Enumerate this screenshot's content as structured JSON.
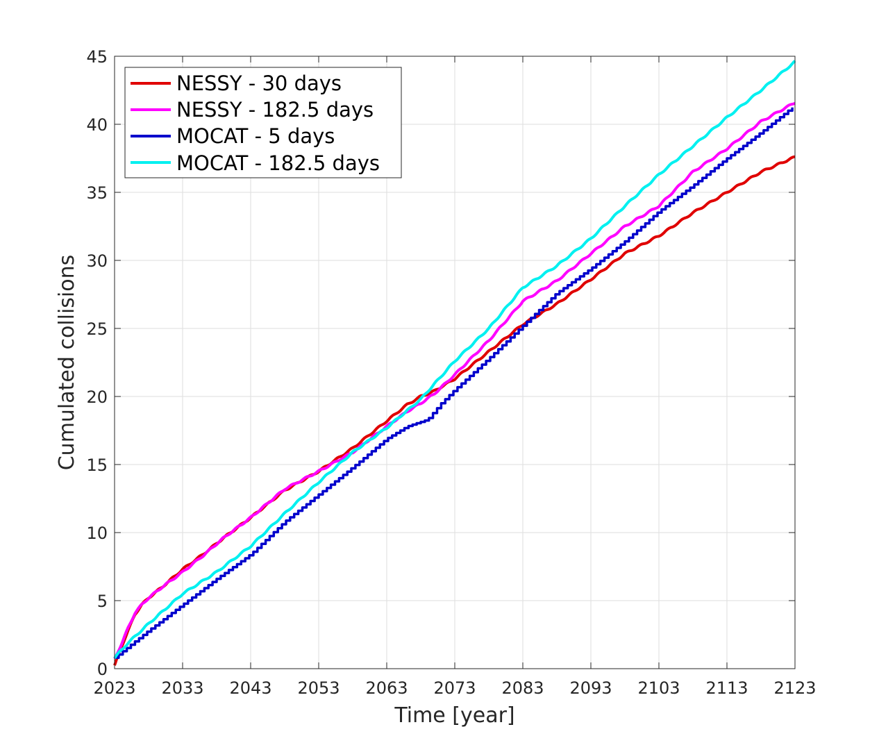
{
  "chart_data": {
    "type": "line",
    "title": "",
    "xlabel": "Time [year]",
    "ylabel": "Cumulated collisions",
    "xlim": [
      2023,
      2123
    ],
    "ylim": [
      0,
      45
    ],
    "xticks": [
      2023,
      2033,
      2043,
      2053,
      2063,
      2073,
      2083,
      2093,
      2103,
      2113,
      2123
    ],
    "yticks": [
      0,
      5,
      10,
      15,
      20,
      25,
      30,
      35,
      40,
      45
    ],
    "grid": true,
    "legend_position": "top-left",
    "series": [
      {
        "name": "NESSY - 30 days",
        "color": "#e00000",
        "style": "smooth",
        "x": [
          2023,
          2024,
          2025,
          2026,
          2027,
          2028,
          2030,
          2033,
          2036,
          2039,
          2043,
          2048,
          2053,
          2058,
          2063,
          2066,
          2068,
          2070,
          2073,
          2078,
          2083,
          2088,
          2093,
          2098,
          2103,
          2108,
          2113,
          2118,
          2123
        ],
        "y": [
          0.2,
          1.6,
          2.8,
          4.0,
          4.7,
          5.2,
          6.0,
          7.3,
          8.4,
          9.6,
          11.1,
          13.1,
          14.5,
          16.2,
          18.2,
          19.4,
          20.0,
          20.4,
          21.3,
          23.3,
          25.3,
          26.8,
          28.6,
          30.5,
          31.8,
          33.5,
          35.0,
          36.5,
          37.6
        ]
      },
      {
        "name": "NESSY - 182.5 days",
        "color": "#ff00ff",
        "style": "smooth",
        "x": [
          2023,
          2024,
          2025,
          2026,
          2027,
          2028,
          2030,
          2033,
          2036,
          2039,
          2043,
          2048,
          2053,
          2058,
          2063,
          2066,
          2068,
          2070,
          2073,
          2078,
          2083,
          2088,
          2093,
          2098,
          2103,
          2108,
          2113,
          2118,
          2123
        ],
        "y": [
          0.7,
          1.8,
          3.0,
          4.1,
          4.7,
          5.2,
          6.0,
          7.1,
          8.3,
          9.6,
          11.1,
          13.2,
          14.5,
          15.9,
          17.8,
          18.9,
          19.5,
          20.2,
          21.6,
          24.1,
          27.0,
          28.5,
          30.5,
          32.5,
          34.0,
          36.5,
          38.2,
          40.2,
          41.6
        ]
      },
      {
        "name": "MOCAT - 5 days",
        "color": "#0000cc",
        "style": "step",
        "x": [
          2023,
          2025,
          2028,
          2033,
          2038,
          2043,
          2048,
          2053,
          2058,
          2063,
          2066,
          2069,
          2071,
          2073,
          2078,
          2083,
          2088,
          2093,
          2098,
          2103,
          2108,
          2113,
          2118,
          2123
        ],
        "y": [
          0.8,
          1.6,
          2.8,
          4.7,
          6.6,
          8.4,
          10.8,
          12.8,
          14.8,
          16.9,
          17.8,
          18.3,
          19.5,
          20.5,
          22.8,
          25.2,
          27.6,
          29.4,
          31.4,
          33.6,
          35.5,
          37.5,
          39.4,
          41.4
        ]
      },
      {
        "name": "MOCAT - 182.5 days",
        "color": "#00f0f0",
        "style": "smooth",
        "x": [
          2023,
          2025,
          2028,
          2033,
          2038,
          2043,
          2048,
          2053,
          2058,
          2063,
          2068,
          2073,
          2078,
          2083,
          2088,
          2093,
          2098,
          2103,
          2108,
          2113,
          2118,
          2123
        ],
        "y": [
          0.8,
          1.9,
          3.3,
          5.5,
          7.1,
          9.0,
          11.4,
          13.7,
          15.9,
          17.7,
          19.8,
          22.6,
          25.0,
          28.0,
          29.6,
          31.6,
          34.0,
          36.3,
          38.4,
          40.5,
          42.5,
          44.6
        ]
      }
    ]
  }
}
